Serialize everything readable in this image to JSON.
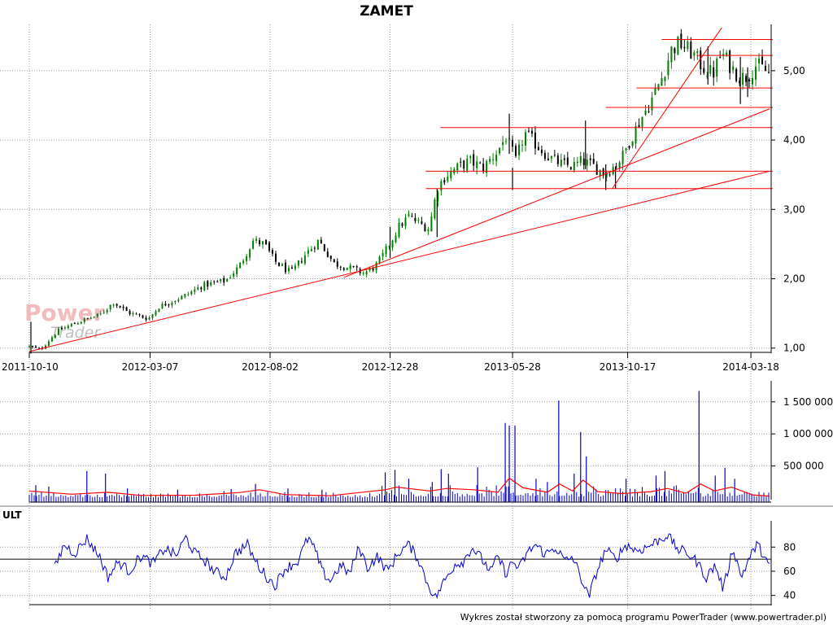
{
  "title": "ZAMET",
  "footer": "Wykres został stworzony za pomocą programu PowerTrader (www.powertrader.pl)",
  "watermark": {
    "power": "Power",
    "trader": "Trader"
  },
  "chart_data": [
    {
      "type": "candlestick",
      "panel": "price",
      "x_tick_labels": [
        "2011-10-10",
        "2012-03-07",
        "2012-08-02",
        "2012-12-28",
        "2013-05-28",
        "2013-10-17",
        "2014-03-18"
      ],
      "xlim": [
        "2011-10-10",
        "2014-04-10"
      ],
      "ylim": [
        0.95,
        5.55
      ],
      "y_ticks": [
        1,
        2,
        3,
        4,
        5
      ],
      "y_tick_labels": [
        "1,00",
        "2,00",
        "3,00",
        "4,00",
        "5,00"
      ],
      "grid": true,
      "colors": {
        "up": "#008000",
        "down": "#000000",
        "lines": "#ff0000"
      },
      "series": [
        {
          "close_points": [
            [
              "2011-10-10",
              1.02
            ],
            [
              "2011-10-24",
              0.98
            ],
            [
              "2011-11-14",
              1.25
            ],
            [
              "2011-12-10",
              1.38
            ],
            [
              "2012-01-05",
              1.48
            ],
            [
              "2012-01-22",
              1.66
            ],
            [
              "2012-02-08",
              1.52
            ],
            [
              "2012-03-05",
              1.42
            ],
            [
              "2012-03-18",
              1.6
            ],
            [
              "2012-04-18",
              1.75
            ],
            [
              "2012-05-10",
              1.9
            ],
            [
              "2012-06-08",
              1.97
            ],
            [
              "2012-06-25",
              2.18
            ],
            [
              "2012-07-12",
              2.55
            ],
            [
              "2012-07-26",
              2.5
            ],
            [
              "2012-08-08",
              2.25
            ],
            [
              "2012-08-28",
              2.08
            ],
            [
              "2012-09-15",
              2.36
            ],
            [
              "2012-10-01",
              2.55
            ],
            [
              "2012-10-20",
              2.22
            ],
            [
              "2012-11-10",
              2.15
            ],
            [
              "2012-11-26",
              2.08
            ],
            [
              "2012-12-10",
              2.18
            ],
            [
              "2012-12-20",
              2.35
            ],
            [
              "2013-01-08",
              2.75
            ],
            [
              "2013-01-20",
              2.9
            ],
            [
              "2013-02-05",
              2.78
            ],
            [
              "2013-02-14",
              2.72
            ],
            [
              "2013-02-24",
              3.3
            ],
            [
              "2013-03-06",
              3.48
            ],
            [
              "2013-03-18",
              3.58
            ],
            [
              "2013-04-05",
              3.7
            ],
            [
              "2013-04-22",
              3.6
            ],
            [
              "2013-05-10",
              3.85
            ],
            [
              "2013-05-20",
              4.05
            ],
            [
              "2013-06-01",
              3.7
            ],
            [
              "2013-06-12",
              4.1
            ],
            [
              "2013-06-25",
              3.95
            ],
            [
              "2013-07-12",
              3.75
            ],
            [
              "2013-07-28",
              3.65
            ],
            [
              "2013-08-10",
              3.62
            ],
            [
              "2013-08-22",
              3.7
            ],
            [
              "2013-09-05",
              3.62
            ],
            [
              "2013-09-18",
              3.52
            ],
            [
              "2013-09-28",
              3.6
            ],
            [
              "2013-10-10",
              3.75
            ],
            [
              "2013-10-22",
              4.05
            ],
            [
              "2013-11-02",
              4.3
            ],
            [
              "2013-11-14",
              4.55
            ],
            [
              "2013-11-28",
              4.9
            ],
            [
              "2013-12-10",
              5.3
            ],
            [
              "2013-12-20",
              5.4
            ],
            [
              "2014-01-05",
              5.25
            ],
            [
              "2014-01-18",
              5.05
            ],
            [
              "2014-01-30",
              4.95
            ],
            [
              "2014-02-10",
              5.25
            ],
            [
              "2014-02-22",
              5.05
            ],
            [
              "2014-03-05",
              4.9
            ],
            [
              "2014-03-14",
              4.92
            ],
            [
              "2014-03-24",
              5.08
            ],
            [
              "2014-04-03",
              5.02
            ],
            [
              "2014-04-10",
              4.95
            ]
          ],
          "spikes": [
            [
              "2011-10-12",
              1.38,
              0.92
            ],
            [
              "2012-12-28",
              2.75,
              2.3
            ],
            [
              "2013-02-24",
              3.3,
              2.6
            ],
            [
              "2013-05-24",
              4.38,
              3.8
            ],
            [
              "2013-05-28",
              3.6,
              3.28
            ],
            [
              "2013-08-26",
              4.28,
              3.58
            ],
            [
              "2013-09-20",
              3.65,
              3.28
            ],
            [
              "2013-10-02",
              3.62,
              3.3
            ],
            [
              "2014-01-24",
              5.35,
              4.8
            ],
            [
              "2014-03-05",
              5.2,
              4.52
            ],
            [
              "2014-03-14",
              5.05,
              4.62
            ]
          ]
        }
      ],
      "horizontal_lines": [
        {
          "y": 5.45,
          "from": "2013-11-28"
        },
        {
          "y": 5.22,
          "from": "2014-01-10"
        },
        {
          "y": 4.75,
          "from": "2013-10-28"
        },
        {
          "y": 4.47,
          "from": "2013-09-20"
        },
        {
          "y": 4.18,
          "from": "2013-02-28"
        },
        {
          "y": 3.55,
          "from": "2013-02-10"
        },
        {
          "y": 3.3,
          "from": "2013-02-10"
        }
      ],
      "trend_lines": [
        {
          "from": [
            "2011-10-10",
            0.95
          ],
          "to": [
            "2014-04-10",
            3.55
          ]
        },
        {
          "from": [
            "2012-11-01",
            2.02
          ],
          "to": [
            "2014-04-10",
            4.45
          ]
        },
        {
          "from": [
            "2013-09-28",
            3.3
          ],
          "to": [
            "2014-02-10",
            5.62
          ]
        }
      ]
    },
    {
      "type": "bar",
      "panel": "volume",
      "ylim": [
        0,
        1700000
      ],
      "y_ticks": [
        500000,
        1000000,
        1500000
      ],
      "y_tick_labels": [
        "500 000",
        "1 000 000",
        "1 500 000"
      ],
      "grid": true,
      "colors": {
        "bars": "#0000cc",
        "average": "#ff0000"
      },
      "spikes": [
        [
          "2011-10-18",
          200000
        ],
        [
          "2011-11-03",
          180000
        ],
        [
          "2011-12-20",
          420000
        ],
        [
          "2012-01-12",
          380000
        ],
        [
          "2012-02-08",
          150000
        ],
        [
          "2012-04-10",
          130000
        ],
        [
          "2012-06-15",
          140000
        ],
        [
          "2012-07-15",
          220000
        ],
        [
          "2012-08-24",
          150000
        ],
        [
          "2012-10-05",
          130000
        ],
        [
          "2012-12-22",
          400000
        ],
        [
          "2013-01-03",
          440000
        ],
        [
          "2013-01-20",
          300000
        ],
        [
          "2013-02-18",
          250000
        ],
        [
          "2013-03-01",
          450000
        ],
        [
          "2013-03-10",
          380000
        ],
        [
          "2013-04-15",
          480000
        ],
        [
          "2013-05-19",
          1170000
        ],
        [
          "2013-05-24",
          1130000
        ],
        [
          "2013-05-31",
          1130000
        ],
        [
          "2013-06-26",
          300000
        ],
        [
          "2013-07-10",
          250000
        ],
        [
          "2013-07-24",
          1520000
        ],
        [
          "2013-08-12",
          380000
        ],
        [
          "2013-08-20",
          1030000
        ],
        [
          "2013-08-27",
          650000
        ],
        [
          "2013-10-15",
          300000
        ],
        [
          "2013-11-21",
          350000
        ],
        [
          "2013-12-02",
          420000
        ],
        [
          "2014-01-13",
          1670000
        ],
        [
          "2014-02-02",
          350000
        ],
        [
          "2014-02-14",
          470000
        ],
        [
          "2014-02-26",
          300000
        ]
      ],
      "average_points": [
        [
          "2011-10-10",
          110000
        ],
        [
          "2011-12-01",
          60000
        ],
        [
          "2012-01-15",
          90000
        ],
        [
          "2012-02-25",
          40000
        ],
        [
          "2012-05-01",
          45000
        ],
        [
          "2012-06-25",
          85000
        ],
        [
          "2012-07-20",
          130000
        ],
        [
          "2012-08-20",
          55000
        ],
        [
          "2012-10-15",
          35000
        ],
        [
          "2012-12-22",
          130000
        ],
        [
          "2013-01-05",
          170000
        ],
        [
          "2013-02-15",
          110000
        ],
        [
          "2013-03-08",
          150000
        ],
        [
          "2013-04-10",
          130000
        ],
        [
          "2013-05-10",
          90000
        ],
        [
          "2013-05-24",
          310000
        ],
        [
          "2013-06-10",
          160000
        ],
        [
          "2013-07-10",
          90000
        ],
        [
          "2013-07-25",
          220000
        ],
        [
          "2013-08-10",
          110000
        ],
        [
          "2013-08-23",
          280000
        ],
        [
          "2013-09-10",
          100000
        ],
        [
          "2013-10-10",
          70000
        ],
        [
          "2013-11-15",
          100000
        ],
        [
          "2013-12-05",
          150000
        ],
        [
          "2013-12-28",
          75000
        ],
        [
          "2014-01-15",
          220000
        ],
        [
          "2014-02-01",
          110000
        ],
        [
          "2014-02-22",
          170000
        ],
        [
          "2014-03-20",
          50000
        ],
        [
          "2014-04-10",
          30000
        ]
      ]
    },
    {
      "type": "line",
      "panel": "oscillator",
      "label": "ULT",
      "ylim": [
        33,
        95
      ],
      "y_ticks": [
        40,
        60,
        80
      ],
      "y_tick_labels": [
        "40",
        "60",
        "80"
      ],
      "reference_line": 70,
      "grid": true,
      "colors": {
        "line": "#0000cc",
        "reference": "#000000"
      },
      "series": [
        {
          "points": [
            [
              "2011-11-10",
              62
            ],
            [
              "2011-11-22",
              82
            ],
            [
              "2011-12-05",
              75
            ],
            [
              "2011-12-20",
              87
            ],
            [
              "2012-01-05",
              72
            ],
            [
              "2012-01-15",
              55
            ],
            [
              "2012-01-28",
              68
            ],
            [
              "2012-02-10",
              60
            ],
            [
              "2012-02-25",
              73
            ],
            [
              "2012-03-10",
              66
            ],
            [
              "2012-03-25",
              79
            ],
            [
              "2012-04-08",
              73
            ],
            [
              "2012-04-20",
              88
            ],
            [
              "2012-05-01",
              75
            ],
            [
              "2012-05-12",
              70
            ],
            [
              "2012-05-25",
              60
            ],
            [
              "2012-06-08",
              55
            ],
            [
              "2012-06-20",
              75
            ],
            [
              "2012-07-05",
              82
            ],
            [
              "2012-07-15",
              68
            ],
            [
              "2012-07-28",
              56
            ],
            [
              "2012-08-08",
              48
            ],
            [
              "2012-08-20",
              62
            ],
            [
              "2012-09-05",
              68
            ],
            [
              "2012-09-18",
              88
            ],
            [
              "2012-09-28",
              75
            ],
            [
              "2012-10-05",
              60
            ],
            [
              "2012-10-15",
              52
            ],
            [
              "2012-10-28",
              65
            ],
            [
              "2012-11-08",
              58
            ],
            [
              "2012-11-20",
              80
            ],
            [
              "2012-11-30",
              63
            ],
            [
              "2012-12-12",
              72
            ],
            [
              "2012-12-25",
              60
            ],
            [
              "2013-01-08",
              76
            ],
            [
              "2013-01-20",
              82
            ],
            [
              "2013-02-01",
              70
            ],
            [
              "2013-02-12",
              50
            ],
            [
              "2013-02-22",
              38
            ],
            [
              "2013-03-05",
              52
            ],
            [
              "2013-03-18",
              66
            ],
            [
              "2013-03-28",
              68
            ],
            [
              "2013-04-08",
              80
            ],
            [
              "2013-04-20",
              70
            ],
            [
              "2013-05-01",
              60
            ],
            [
              "2013-05-10",
              72
            ],
            [
              "2013-05-20",
              58
            ],
            [
              "2013-05-28",
              68
            ],
            [
              "2013-06-05",
              62
            ],
            [
              "2013-06-15",
              75
            ],
            [
              "2013-06-25",
              82
            ],
            [
              "2013-07-08",
              74
            ],
            [
              "2013-07-20",
              80
            ],
            [
              "2013-08-01",
              68
            ],
            [
              "2013-08-10",
              72
            ],
            [
              "2013-08-22",
              52
            ],
            [
              "2013-08-30",
              38
            ],
            [
              "2013-09-08",
              58
            ],
            [
              "2013-09-20",
              78
            ],
            [
              "2013-10-02",
              70
            ],
            [
              "2013-10-15",
              82
            ],
            [
              "2013-10-28",
              77
            ],
            [
              "2013-11-10",
              80
            ],
            [
              "2013-11-25",
              86
            ],
            [
              "2013-12-05",
              90
            ],
            [
              "2013-12-18",
              78
            ],
            [
              "2013-12-30",
              75
            ],
            [
              "2014-01-10",
              68
            ],
            [
              "2014-01-22",
              55
            ],
            [
              "2014-02-02",
              65
            ],
            [
              "2014-02-12",
              45
            ],
            [
              "2014-02-24",
              80
            ],
            [
              "2014-03-06",
              55
            ],
            [
              "2014-03-14",
              68
            ],
            [
              "2014-03-25",
              82
            ],
            [
              "2014-04-03",
              74
            ],
            [
              "2014-04-10",
              63
            ]
          ]
        }
      ]
    }
  ]
}
